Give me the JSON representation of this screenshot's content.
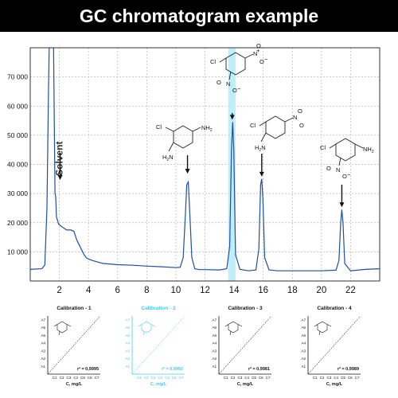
{
  "title": "GC chromatogram example",
  "colors": {
    "trace": "#1f4ea3",
    "highlight": "#bfeefb",
    "highlight_text": "#4cc8ee",
    "grid": "#b8b8b8"
  },
  "chart_data": [
    {
      "type": "line",
      "title": "GC chromatogram example",
      "xlabel": "",
      "ylabel": "",
      "xlim": [
        0,
        24
      ],
      "ylim": [
        0,
        80000
      ],
      "x_ticks": [
        "2",
        "4",
        "6",
        "8",
        "10",
        "12",
        "14",
        "16",
        "18",
        "20",
        "22"
      ],
      "y_ticks": [
        "10 000",
        "20 000",
        "30 000",
        "40 000",
        "50 000",
        "60 000",
        "70 000"
      ],
      "grid": true,
      "highlight_range": [
        13.6,
        14.1
      ],
      "annotations": [
        {
          "text": "Solvent",
          "x": 2,
          "y": 42000
        }
      ],
      "peaks": [
        {
          "x": 10.8,
          "y": 36000,
          "molecule": "aminochloroaniline"
        },
        {
          "x": 13.9,
          "y": 54500,
          "molecule": "chlorodinitrobenzene"
        },
        {
          "x": 15.9,
          "y": 35000,
          "molecule": "chloronitroaniline"
        },
        {
          "x": 21.4,
          "y": 24500,
          "molecule": "chloronitroaniline-2"
        }
      ],
      "series": [
        {
          "x": [
            0,
            0.8,
            1.0,
            1.15,
            1.25,
            1.3,
            1.35,
            1.45,
            1.6,
            1.7,
            1.72,
            1.75,
            1.8,
            1.95,
            2.2,
            2.5,
            2.8,
            3.0,
            3.2,
            3.5,
            3.7,
            3.85,
            4.0,
            4.3,
            5,
            6,
            7,
            8,
            9,
            10,
            10.3,
            10.5,
            10.65,
            10.75,
            10.85,
            10.95,
            11.1,
            11.3,
            11.6,
            12,
            13,
            13.5,
            13.7,
            13.82,
            13.9,
            13.98,
            14.1,
            14.4,
            15,
            15.5,
            15.7,
            15.82,
            15.9,
            15.98,
            16.1,
            16.4,
            17,
            18,
            19,
            20,
            21,
            21.2,
            21.32,
            21.4,
            21.48,
            21.6,
            22,
            23,
            24
          ],
          "y": [
            4000,
            4200,
            5500,
            25000,
            65000,
            80000,
            80000,
            80000,
            80000,
            30000,
            29500,
            29000,
            22000,
            19500,
            18500,
            17500,
            17500,
            17000,
            14000,
            11000,
            9000,
            8000,
            7500,
            7000,
            6000,
            5600,
            5400,
            5100,
            4900,
            4600,
            4700,
            8000,
            22000,
            33000,
            34000,
            24000,
            8000,
            4200,
            3900,
            3900,
            3800,
            4200,
            12000,
            45000,
            54500,
            45000,
            9000,
            4000,
            3500,
            3800,
            11000,
            33000,
            35000,
            28000,
            8000,
            3800,
            3500,
            3500,
            3500,
            3500,
            3700,
            7000,
            20000,
            24500,
            20000,
            6000,
            3500,
            4000,
            4200
          ]
        }
      ]
    },
    {
      "type": "line",
      "title": "Calibration - 1",
      "xlabel": "C, mg/L",
      "ylabel": "",
      "x_ticks": [
        "C1",
        "C2",
        "C3",
        "C4",
        "C5",
        "C6",
        "C7"
      ],
      "y_ticks": [
        "A1",
        "A2",
        "A3",
        "A4",
        "A5",
        "A6",
        "A7"
      ],
      "annotations": [
        {
          "text": "r² = 0,9995"
        }
      ],
      "series": [
        {
          "x": [
            0,
            7
          ],
          "y": [
            0,
            7
          ]
        }
      ]
    },
    {
      "type": "line",
      "title": "Calibration - 2",
      "xlabel": "C, mg/L",
      "ylabel": "",
      "x_ticks": [
        "C1",
        "C2",
        "C3",
        "C4",
        "C5",
        "C6",
        "C7"
      ],
      "y_ticks": [
        "A1",
        "A2",
        "A3",
        "A4",
        "A5",
        "A6",
        "A7"
      ],
      "annotations": [
        {
          "text": "r² = 0,9992"
        }
      ],
      "series": [
        {
          "x": [
            0,
            7
          ],
          "y": [
            0,
            7
          ]
        }
      ]
    },
    {
      "type": "line",
      "title": "Calibration - 3",
      "xlabel": "C, mg/L",
      "ylabel": "",
      "x_ticks": [
        "C1",
        "C2",
        "C3",
        "C4",
        "C5",
        "C6",
        "C7"
      ],
      "y_ticks": [
        "A1",
        "A2",
        "A3",
        "A4",
        "A5",
        "A6",
        "A7"
      ],
      "annotations": [
        {
          "text": "r² = 0,9981"
        }
      ],
      "series": [
        {
          "x": [
            0,
            7
          ],
          "y": [
            0,
            7
          ]
        }
      ]
    },
    {
      "type": "line",
      "title": "Calibration - 4",
      "xlabel": "C, mg/L",
      "ylabel": "",
      "x_ticks": [
        "C1",
        "C2",
        "C3",
        "C4",
        "C5",
        "C6",
        "C7"
      ],
      "y_ticks": [
        "A1",
        "A2",
        "A3",
        "A4",
        "A5",
        "A6",
        "A7"
      ],
      "annotations": [
        {
          "text": "r² = 0,9989"
        }
      ],
      "series": [
        {
          "x": [
            0,
            7
          ],
          "y": [
            0,
            7
          ]
        }
      ]
    }
  ],
  "molecules": {
    "m1": {
      "Cl": "Cl",
      "NH2": "NH",
      "NH2sub": "2",
      "H2N": "H",
      "H2Nsub": "2",
      "H2Nend": "N"
    },
    "m2": {
      "Cl": "Cl",
      "N": "N",
      "O": "O",
      "Oneg": "O",
      "plus": "+",
      "minus": "−"
    },
    "m3": {
      "Cl": "Cl",
      "H2N": "H",
      "H2Nsub": "2",
      "H2Nend": "N",
      "N": "N",
      "O": "O",
      "Oneg": "O",
      "plus": "+",
      "minus": "−"
    },
    "m4": {
      "Cl": "Cl",
      "NH2": "NH",
      "NH2sub": "2",
      "N": "N",
      "O": "O",
      "Oneg": "O",
      "plus": "+",
      "minus": "−"
    }
  }
}
